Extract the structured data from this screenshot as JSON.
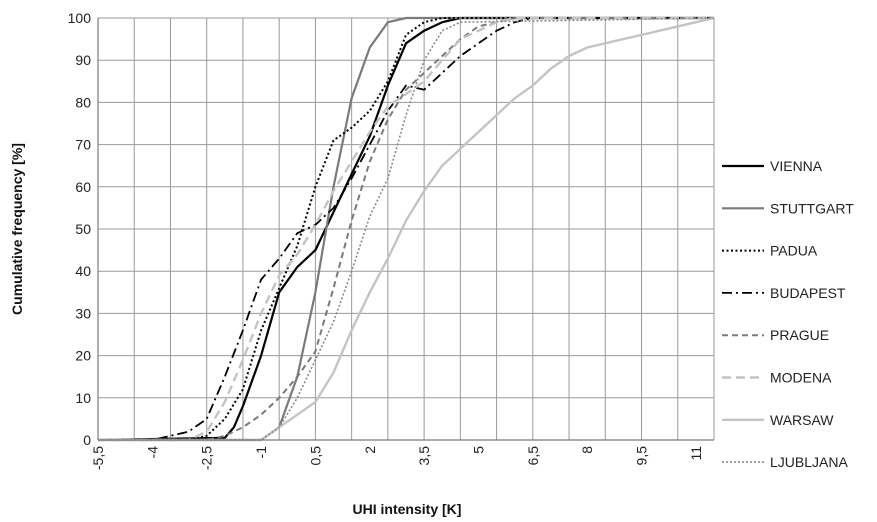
{
  "chart_data": {
    "type": "line",
    "title": "",
    "xlabel": "UHI intensity [K]",
    "ylabel": "Cumulative frequency [%]",
    "xlim": [
      -5.5,
      11.5
    ],
    "ylim": [
      0,
      100
    ],
    "x_ticks": [
      -5.5,
      -4,
      -2.5,
      -1,
      0.5,
      2,
      3.5,
      5,
      6.5,
      8,
      9.5,
      11
    ],
    "x_tick_labels": [
      "-5,5",
      "-4",
      "-2,5",
      "-1",
      "0,5",
      "2",
      "3,5",
      "5",
      "6,5",
      "8",
      "9,5",
      "11"
    ],
    "y_ticks": [
      0,
      10,
      20,
      30,
      40,
      50,
      60,
      70,
      80,
      90,
      100
    ],
    "y_tick_labels": [
      "0",
      "10",
      "20",
      "30",
      "40",
      "50",
      "60",
      "70",
      "80",
      "90",
      "100"
    ],
    "grid": true,
    "legend_position": "right",
    "series": [
      {
        "name": "VIENNA",
        "color": "#000000",
        "dash": "solid",
        "width": 2.2,
        "x": [
          -5.5,
          -2,
          -1.75,
          -1.5,
          -1,
          -0.5,
          0,
          0.5,
          1,
          1.5,
          2,
          2.5,
          3,
          3.5,
          4,
          4.5,
          11.5
        ],
        "y": [
          0,
          0.5,
          3,
          8,
          20,
          35,
          41,
          45,
          54,
          63,
          72,
          84,
          94,
          97,
          99,
          100,
          100
        ]
      },
      {
        "name": "STUTTGART",
        "color": "#7a7a7a",
        "dash": "solid",
        "width": 2.2,
        "x": [
          -5.5,
          -1,
          -0.5,
          0,
          0.5,
          1,
          1.5,
          2,
          2.5,
          3,
          11.5
        ],
        "y": [
          0,
          0,
          3,
          15,
          35,
          60,
          81,
          93,
          99,
          100,
          100
        ]
      },
      {
        "name": "PADUA",
        "color": "#000000",
        "dash": "2,2.5",
        "width": 2,
        "x": [
          -5.5,
          -3,
          -2.5,
          -2,
          -1.5,
          -1,
          -0.5,
          0,
          0.5,
          1,
          1.5,
          2,
          2.5,
          3,
          3.5,
          4,
          11.5
        ],
        "y": [
          0,
          0,
          1,
          5,
          12,
          26,
          36,
          46,
          60,
          71,
          74,
          78,
          85,
          96,
          99,
          100,
          100
        ]
      },
      {
        "name": "BUDAPEST",
        "color": "#000000",
        "dash": "10,4,2,4",
        "width": 1.8,
        "x": [
          -5.5,
          -4,
          -3.5,
          -3,
          -2.5,
          -2,
          -1.5,
          -1,
          -0.5,
          0,
          0.5,
          1,
          1.5,
          2,
          2.5,
          3,
          3.5,
          4,
          4.5,
          5,
          5.5,
          6,
          6.5,
          11.5
        ],
        "y": [
          0,
          0,
          1,
          2,
          5,
          15,
          26,
          38,
          43,
          49,
          51,
          55,
          62,
          70,
          78,
          84,
          83,
          87,
          91,
          94,
          97,
          99,
          100,
          100
        ]
      },
      {
        "name": "PRAGUE",
        "color": "#7a7a7a",
        "dash": "6,4",
        "width": 2,
        "x": [
          -5.5,
          -2.5,
          -2,
          -1.5,
          -1,
          -0.5,
          0,
          0.5,
          1,
          1.5,
          2,
          2.5,
          3,
          3.5,
          4,
          4.5,
          5,
          5.5,
          6,
          11.5
        ],
        "y": [
          0,
          0,
          1,
          3,
          6,
          10,
          15,
          21,
          36,
          52,
          66,
          76,
          83,
          87,
          91,
          95,
          98,
          99,
          100,
          100
        ]
      },
      {
        "name": "MODENA",
        "color": "#c4c4c4",
        "dash": "9,5",
        "width": 2.4,
        "x": [
          -5.5,
          -3,
          -2.5,
          -2,
          -1.5,
          -1,
          -0.5,
          0,
          0.5,
          1,
          1.5,
          2,
          2.5,
          3,
          3.5,
          4,
          4.5,
          5,
          5.5,
          6,
          11.5
        ],
        "y": [
          0,
          0,
          2,
          9,
          19,
          30,
          39,
          44,
          51,
          59,
          66,
          73,
          79,
          82,
          85,
          90,
          95,
          97,
          99,
          100,
          100
        ]
      },
      {
        "name": "WARSAW",
        "color": "#c4c4c4",
        "dash": "solid",
        "width": 2.4,
        "x": [
          -5.5,
          -1,
          -0.5,
          0,
          0.5,
          1,
          1.5,
          2,
          2.5,
          3,
          3.5,
          4,
          4.5,
          5,
          5.5,
          6,
          6.5,
          7,
          7.5,
          8,
          8.5,
          9,
          9.5,
          10,
          10.5,
          11,
          11.5
        ],
        "y": [
          0,
          0,
          3,
          6,
          9,
          16,
          26,
          35,
          43,
          52,
          59,
          65,
          69,
          73,
          77,
          81,
          84,
          88,
          91,
          93,
          94,
          95,
          96,
          97,
          98,
          99,
          100
        ]
      },
      {
        "name": "LJUBLJANA",
        "color": "#8a8a8a",
        "dash": "2,2",
        "width": 1.6,
        "x": [
          -5.5,
          -2.5,
          -2,
          -1.5,
          -1,
          -0.5,
          0,
          0.5,
          1,
          1.5,
          2,
          2.5,
          3,
          3.5,
          4,
          4.5,
          11.5
        ],
        "y": [
          0,
          0,
          0,
          0,
          0,
          3,
          10,
          19,
          28,
          40,
          53,
          62,
          77,
          90,
          97,
          99,
          100
        ]
      }
    ]
  }
}
